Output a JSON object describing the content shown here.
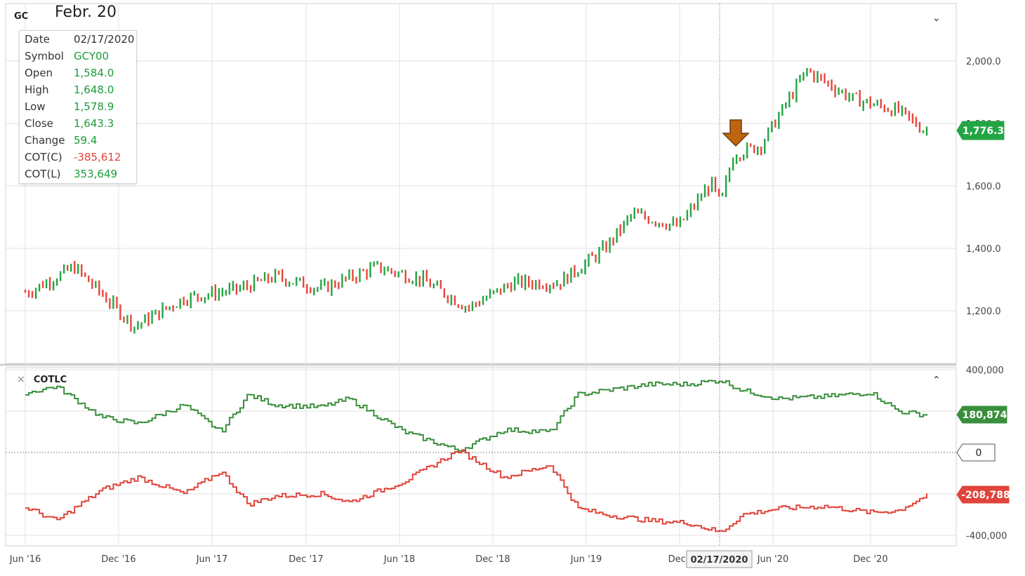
{
  "annotation": "Febr. 20",
  "symbol_label": "GC",
  "tooltip": {
    "rows": [
      {
        "key": "Date",
        "value": "02/17/2020",
        "color": "#333333"
      },
      {
        "key": "Symbol",
        "value": "GCY00",
        "color": "#1a9c3a"
      },
      {
        "key": "Open",
        "value": "1,584.0",
        "color": "#1a9c3a"
      },
      {
        "key": "High",
        "value": "1,648.0",
        "color": "#1a9c3a"
      },
      {
        "key": "Low",
        "value": "1,578.9",
        "color": "#1a9c3a"
      },
      {
        "key": "Close",
        "value": "1,643.3",
        "color": "#1a9c3a"
      },
      {
        "key": "Change",
        "value": "59.4",
        "color": "#1a9c3a"
      },
      {
        "key": "COT(C)",
        "value": "-385,612",
        "color": "#e0443a"
      },
      {
        "key": "COT(L)",
        "value": "353,649",
        "color": "#1a9c3a"
      }
    ]
  },
  "indicator": {
    "close_icon": "×",
    "name": "COTLC"
  },
  "colors": {
    "up": "#22a543",
    "down": "#e8463b",
    "grid": "#e1e1e1",
    "cot_long": "#3a8f3c",
    "cot_comm": "#e0443a",
    "arrow": "#c0650f"
  },
  "x_ticks": [
    "Jun '16",
    "Dec '16",
    "Jun '17",
    "Dec '17",
    "Jun '18",
    "Dec '18",
    "Jun '19",
    "Dec '",
    "Jun '20",
    "Dec '20"
  ],
  "crosshair_date": "02/17/2020",
  "price_badge": "1,776.3",
  "cot_badges": {
    "long": "180,874",
    "zero": "0",
    "comm": "-208,788"
  },
  "chart_data": [
    {
      "type": "candlestick",
      "series": "GC weekly price",
      "y_ticks": [
        "2,000.0",
        "1,800.0",
        "1,600.0",
        "1,400.0",
        "1,200.0"
      ],
      "ylim": [
        1040,
        2200
      ],
      "anchors_time": [
        2016.35,
        2016.6,
        2016.93,
        2017.2,
        2017.5,
        2017.7,
        2017.95,
        2018.25,
        2018.5,
        2018.75,
        2019.0,
        2019.25,
        2019.5,
        2019.65,
        2019.9,
        2020.08,
        2020.13,
        2020.2,
        2020.35,
        2020.6,
        2020.85,
        2021.1,
        2021.25
      ],
      "anchors_close": [
        1260,
        1340,
        1150,
        1240,
        1270,
        1310,
        1270,
        1340,
        1300,
        1210,
        1290,
        1290,
        1400,
        1510,
        1470,
        1610,
        1540,
        1700,
        1730,
        1970,
        1880,
        1840,
        1776
      ]
    },
    {
      "type": "line",
      "series": "COTLC",
      "y_ticks": [
        "400,000",
        "-400,000"
      ],
      "ylim": [
        -420000,
        400000
      ],
      "long_anchors_time": [
        2016.35,
        2016.5,
        2016.75,
        2016.95,
        2017.2,
        2017.4,
        2017.55,
        2017.7,
        2017.95,
        2018.1,
        2018.4,
        2018.7,
        2018.95,
        2019.2,
        2019.35,
        2019.5,
        2019.75,
        2019.95,
        2020.13,
        2020.25,
        2020.45,
        2020.7,
        2020.95,
        2021.1,
        2021.25
      ],
      "long_anchors_value": [
        290000,
        320000,
        170000,
        140000,
        230000,
        100000,
        280000,
        230000,
        220000,
        260000,
        100000,
        10000,
        110000,
        100000,
        280000,
        300000,
        330000,
        330000,
        350000,
        300000,
        260000,
        270000,
        290000,
        200000,
        180874
      ],
      "comm_anchors_time": [
        2016.35,
        2016.5,
        2016.75,
        2016.95,
        2017.2,
        2017.4,
        2017.55,
        2017.7,
        2017.95,
        2018.1,
        2018.4,
        2018.7,
        2018.95,
        2019.2,
        2019.35,
        2019.5,
        2019.75,
        2019.95,
        2020.13,
        2020.25,
        2020.45,
        2020.7,
        2020.95,
        2021.1,
        2021.25
      ],
      "comm_anchors_value": [
        -270000,
        -330000,
        -180000,
        -120000,
        -200000,
        -90000,
        -250000,
        -210000,
        -200000,
        -240000,
        -140000,
        10000,
        -120000,
        -60000,
        -270000,
        -300000,
        -330000,
        -340000,
        -385612,
        -300000,
        -270000,
        -260000,
        -290000,
        -280000,
        -208788
      ]
    }
  ]
}
